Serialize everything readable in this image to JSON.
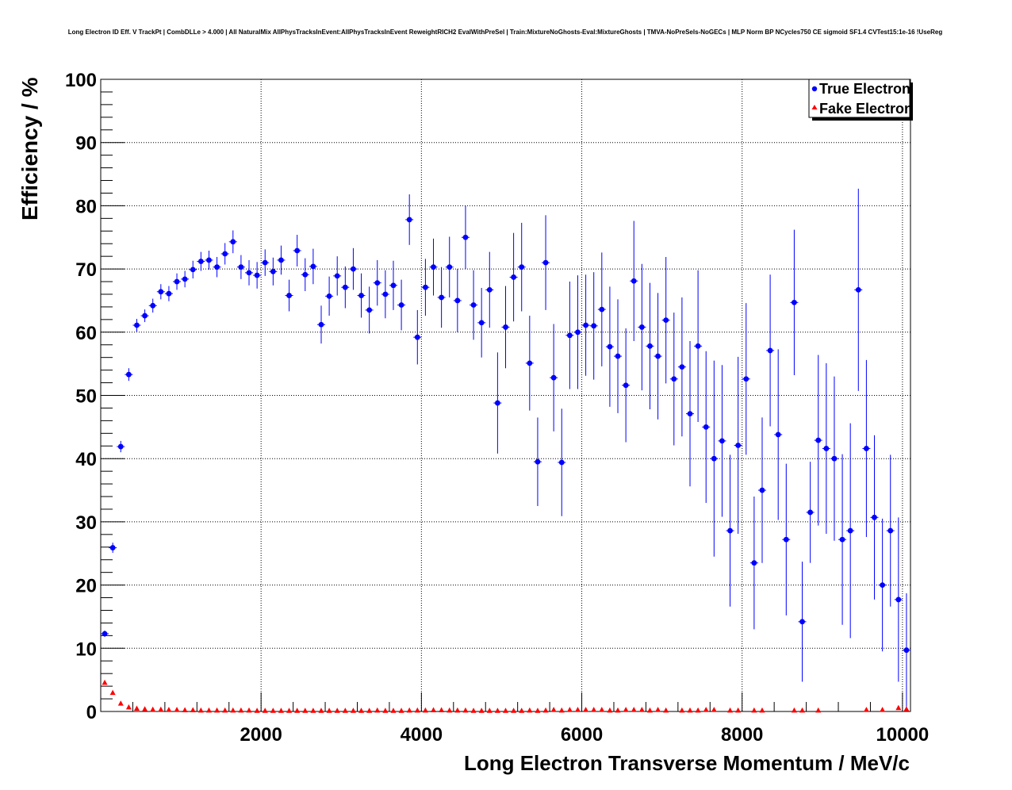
{
  "chart_data": {
    "type": "scatter",
    "title": "Long Electron ID Eff. V TrackPt | CombDLLe > 4.000 | All NaturalMix AllPhysTracksInEvent:AllPhysTracksInEvent ReweightRICH2 EvalWithPreSel | Train:MixtureNoGhosts-Eval:MixtureGhosts | TMVA-NoPreSels-NoGECs | MLP Norm BP NCycles750 CE sigmoid SF1.4 CVTest15:1e-16 !UseReg",
    "xlabel": "Long Electron Transverse Momentum / MeV/c",
    "ylabel": "Efficiency / %",
    "xlim": [
      0,
      10100
    ],
    "ylim": [
      0,
      100
    ],
    "xticks": [
      2000,
      4000,
      6000,
      8000,
      10000
    ],
    "xtick_labels": [
      "2000",
      "4000",
      "6000",
      "8000",
      "10000"
    ],
    "yticks": [
      0,
      10,
      20,
      30,
      40,
      50,
      60,
      70,
      80,
      90,
      100
    ],
    "ytick_labels": [
      "0",
      "10",
      "20",
      "30",
      "40",
      "50",
      "60",
      "70",
      "80",
      "90",
      "100"
    ],
    "grid": true,
    "legend_position": "top-right",
    "series": [
      {
        "name": "True Electron",
        "color": "#0000ff",
        "marker": "circle",
        "x": [
          50,
          150,
          250,
          350,
          450,
          550,
          650,
          750,
          850,
          950,
          1050,
          1150,
          1250,
          1350,
          1450,
          1550,
          1650,
          1750,
          1850,
          1950,
          2050,
          2150,
          2250,
          2350,
          2450,
          2550,
          2650,
          2750,
          2850,
          2950,
          3050,
          3150,
          3250,
          3350,
          3450,
          3550,
          3650,
          3750,
          3850,
          3950,
          4050,
          4150,
          4250,
          4350,
          4450,
          4550,
          4650,
          4750,
          4850,
          4950,
          5050,
          5150,
          5250,
          5350,
          5450,
          5550,
          5650,
          5750,
          5850,
          5950,
          6050,
          6150,
          6250,
          6350,
          6450,
          6550,
          6650,
          6750,
          6850,
          6950,
          7050,
          7150,
          7250,
          7350,
          7450,
          7550,
          7650,
          7750,
          7850,
          7950,
          8050,
          8150,
          8250,
          8350,
          8450,
          8550,
          8650,
          8750,
          8850,
          8950,
          9050,
          9150,
          9250,
          9350,
          9450,
          9550,
          9650,
          9750,
          9850,
          9950,
          10050
        ],
        "y": [
          12.3,
          25.9,
          41.9,
          53.3,
          61.1,
          62.6,
          64.2,
          66.4,
          66.1,
          68.0,
          68.4,
          69.9,
          71.2,
          71.4,
          70.3,
          72.4,
          74.3,
          70.3,
          69.4,
          69.0,
          71.0,
          69.6,
          71.4,
          65.8,
          72.9,
          69.1,
          70.4,
          61.2,
          65.7,
          68.9,
          67.1,
          70.0,
          65.8,
          63.5,
          67.8,
          66.0,
          67.4,
          64.3,
          77.8,
          59.2,
          67.1,
          70.3,
          65.5,
          70.3,
          65.0,
          75.0,
          64.3,
          61.5,
          66.7,
          48.8,
          60.8,
          68.7,
          70.3,
          55.1,
          39.5,
          71.0,
          52.8,
          39.4,
          59.5,
          60.0,
          61.1,
          61.0,
          63.6,
          57.7,
          56.2,
          51.6,
          68.1,
          60.8,
          57.8,
          56.2,
          61.9,
          52.6,
          54.5,
          47.1,
          57.8,
          45.0,
          40.0,
          42.8,
          28.6,
          42.1,
          52.6,
          23.5,
          35.0,
          57.1,
          43.8,
          27.2,
          64.7,
          14.2,
          31.5,
          42.9,
          41.6,
          40.0,
          27.2,
          28.6,
          66.7,
          41.6,
          30.7,
          20.0,
          28.6,
          17.7,
          9.7
        ],
        "yerr": [
          0.5,
          0.8,
          0.9,
          1.0,
          1.0,
          1.0,
          1.1,
          1.2,
          1.2,
          1.3,
          1.3,
          1.4,
          1.5,
          1.5,
          1.6,
          1.7,
          1.8,
          1.9,
          2.0,
          2.1,
          2.1,
          2.2,
          2.3,
          2.5,
          2.5,
          2.6,
          2.8,
          3.0,
          3.1,
          3.1,
          3.3,
          3.3,
          3.5,
          3.7,
          3.6,
          3.8,
          3.9,
          4.0,
          4.0,
          4.3,
          4.5,
          4.5,
          4.8,
          4.8,
          5.0,
          5.0,
          5.5,
          5.5,
          6.0,
          8.0,
          6.5,
          7.0,
          7.0,
          7.5,
          7.0,
          7.5,
          8.5,
          8.5,
          8.5,
          9.0,
          8.0,
          8.5,
          9.0,
          9.5,
          9.0,
          9.0,
          9.5,
          10.0,
          10.0,
          10.0,
          10.0,
          10.5,
          11.0,
          11.5,
          12.0,
          12.0,
          15.5,
          12.0,
          12.0,
          14.0,
          12.0,
          10.5,
          11.5,
          12.0,
          13.5,
          12.0,
          11.5,
          9.5,
          8.0,
          13.5,
          13.5,
          13.0,
          13.5,
          17.0,
          16.0,
          14.0,
          13.0,
          10.5,
          12.0,
          13.0,
          9.0
        ]
      },
      {
        "name": "Fake Electron",
        "color": "#ff0000",
        "marker": "triangle",
        "x": [
          50,
          150,
          250,
          350,
          450,
          550,
          650,
          750,
          850,
          950,
          1050,
          1150,
          1250,
          1350,
          1450,
          1550,
          1650,
          1750,
          1850,
          1950,
          2050,
          2150,
          2250,
          2350,
          2450,
          2550,
          2650,
          2750,
          2850,
          2950,
          3050,
          3150,
          3250,
          3350,
          3450,
          3550,
          3650,
          3750,
          3850,
          3950,
          4050,
          4150,
          4250,
          4350,
          4450,
          4550,
          4650,
          4750,
          4850,
          4950,
          5050,
          5150,
          5250,
          5350,
          5450,
          5550,
          5650,
          5750,
          5850,
          5950,
          6050,
          6150,
          6250,
          6350,
          6450,
          6550,
          6650,
          6750,
          6850,
          6950,
          7050,
          7250,
          7350,
          7450,
          7550,
          7650,
          7850,
          7950,
          8150,
          8250,
          8650,
          8750,
          8950,
          9550,
          9750,
          9950,
          10050
        ],
        "y": [
          4.6,
          3.0,
          1.3,
          0.7,
          0.5,
          0.4,
          0.35,
          0.35,
          0.3,
          0.3,
          0.25,
          0.25,
          0.2,
          0.2,
          0.2,
          0.2,
          0.2,
          0.2,
          0.2,
          0.15,
          0.15,
          0.15,
          0.15,
          0.15,
          0.15,
          0.15,
          0.15,
          0.15,
          0.15,
          0.15,
          0.15,
          0.15,
          0.15,
          0.15,
          0.2,
          0.15,
          0.15,
          0.15,
          0.2,
          0.2,
          0.2,
          0.25,
          0.25,
          0.2,
          0.2,
          0.2,
          0.15,
          0.15,
          0.15,
          0.15,
          0.15,
          0.15,
          0.15,
          0.2,
          0.15,
          0.2,
          0.3,
          0.2,
          0.3,
          0.3,
          0.3,
          0.3,
          0.3,
          0.2,
          0.2,
          0.3,
          0.3,
          0.3,
          0.2,
          0.3,
          0.2,
          0.2,
          0.2,
          0.2,
          0.3,
          0.3,
          0.2,
          0.2,
          0.2,
          0.2,
          0.2,
          0.2,
          0.2,
          0.3,
          0.3,
          0.6,
          0.4
        ]
      }
    ]
  }
}
